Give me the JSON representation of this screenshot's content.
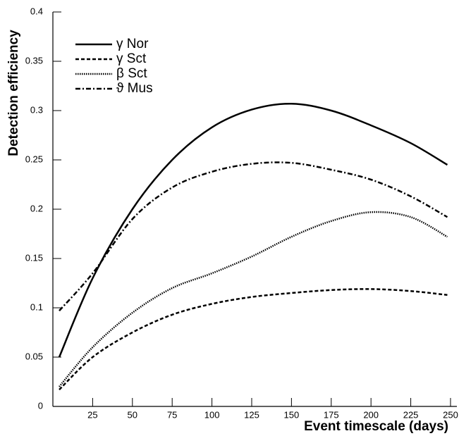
{
  "chart_data": {
    "type": "line",
    "xlabel": "Event timescale (days)",
    "ylabel": "Detection efficiency",
    "x": [
      4,
      25,
      50,
      75,
      100,
      125,
      150,
      175,
      200,
      225,
      248
    ],
    "series": [
      {
        "name": "γ Nor",
        "color": "#000000",
        "dash": "solid",
        "values": [
          0.05,
          0.13,
          0.2,
          0.25,
          0.283,
          0.301,
          0.307,
          0.3,
          0.285,
          0.267,
          0.245
        ]
      },
      {
        "name": "γ Sct",
        "color": "#000000",
        "dash": "dashed",
        "values": [
          0.017,
          0.05,
          0.075,
          0.093,
          0.104,
          0.111,
          0.115,
          0.118,
          0.119,
          0.117,
          0.113
        ]
      },
      {
        "name": "β Sct",
        "color": "#000000",
        "dash": "dotted",
        "values": [
          0.02,
          0.06,
          0.095,
          0.12,
          0.135,
          0.152,
          0.172,
          0.188,
          0.197,
          0.192,
          0.172
        ]
      },
      {
        "name": "ϑ Mus",
        "color": "#000000",
        "dash": "dashdot",
        "values": [
          0.097,
          0.135,
          0.19,
          0.222,
          0.238,
          0.246,
          0.247,
          0.24,
          0.23,
          0.213,
          0.192
        ]
      }
    ],
    "xlim": [
      0,
      254
    ],
    "xticks": [
      25,
      50,
      75,
      100,
      125,
      150,
      175,
      200,
      225,
      250
    ],
    "ylim": [
      0,
      0.4
    ],
    "yticks": [
      0,
      0.05,
      0.1,
      0.15,
      0.2,
      0.25,
      0.3,
      0.35,
      0.4
    ],
    "legend": "upper left"
  }
}
